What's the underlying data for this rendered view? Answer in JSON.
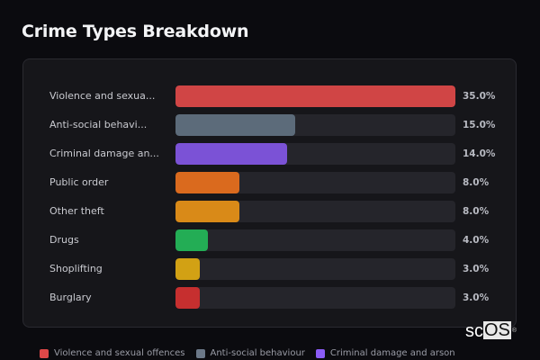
{
  "page": {
    "title": "Crime Types Breakdown"
  },
  "chart_data": {
    "type": "bar",
    "orientation": "horizontal",
    "title": "Crime Types Breakdown",
    "xlabel": "",
    "ylabel": "",
    "xlim": [
      0,
      35
    ],
    "grid": false,
    "value_format": "percent",
    "categories": [
      "Violence and sexual offences",
      "Anti-social behaviour",
      "Criminal damage and arson",
      "Public order",
      "Other theft",
      "Drugs",
      "Shoplifting",
      "Burglary"
    ],
    "category_display_labels": [
      "Violence and sexua...",
      "Anti-social behavi...",
      "Criminal damage an...",
      "Public order",
      "Other theft",
      "Drugs",
      "Shoplifting",
      "Burglary"
    ],
    "values": [
      35.0,
      15.0,
      14.0,
      8.0,
      8.0,
      4.0,
      3.0,
      3.0
    ],
    "value_labels": [
      "35.0%",
      "15.0%",
      "14.0%",
      "8.0%",
      "8.0%",
      "4.0%",
      "3.0%",
      "3.0%"
    ],
    "colors": [
      "#d04545",
      "#5c6b7a",
      "#7b52d6",
      "#da6a1e",
      "#d98a18",
      "#23ad55",
      "#d2a114",
      "#c62f2f"
    ],
    "legend": {
      "position": "bottom",
      "entries": [
        {
          "label": "Violence and sexual offences",
          "color": "#e04848"
        },
        {
          "label": "Anti-social behaviour",
          "color": "#6b7888"
        },
        {
          "label": "Criminal damage and arson",
          "color": "#8b5cf6"
        }
      ]
    }
  },
  "rows": [
    {
      "label": "Violence and sexua...",
      "value": "35.0%",
      "pct": 100,
      "color": "#d04545"
    },
    {
      "label": "Anti-social behavi...",
      "value": "15.0%",
      "pct": 42.86,
      "color": "#5c6b7a"
    },
    {
      "label": "Criminal damage an...",
      "value": "14.0%",
      "pct": 40.0,
      "color": "#7b52d6"
    },
    {
      "label": "Public order",
      "value": "8.0%",
      "pct": 22.86,
      "color": "#da6a1e"
    },
    {
      "label": "Other theft",
      "value": "8.0%",
      "pct": 22.86,
      "color": "#d98a18"
    },
    {
      "label": "Drugs",
      "value": "4.0%",
      "pct": 11.43,
      "color": "#23ad55"
    },
    {
      "label": "Shoplifting",
      "value": "3.0%",
      "pct": 8.57,
      "color": "#d2a114"
    },
    {
      "label": "Burglary",
      "value": "3.0%",
      "pct": 8.57,
      "color": "#c62f2f"
    }
  ],
  "legend": [
    {
      "label": "Violence and sexual offences",
      "color": "#e04848"
    },
    {
      "label": "Anti-social behaviour",
      "color": "#6b7888"
    },
    {
      "label": "Criminal damage and arson",
      "color": "#8b5cf6"
    }
  ],
  "watermark": {
    "prefix": "sc",
    "boxed": "OS",
    "mark": "®"
  }
}
